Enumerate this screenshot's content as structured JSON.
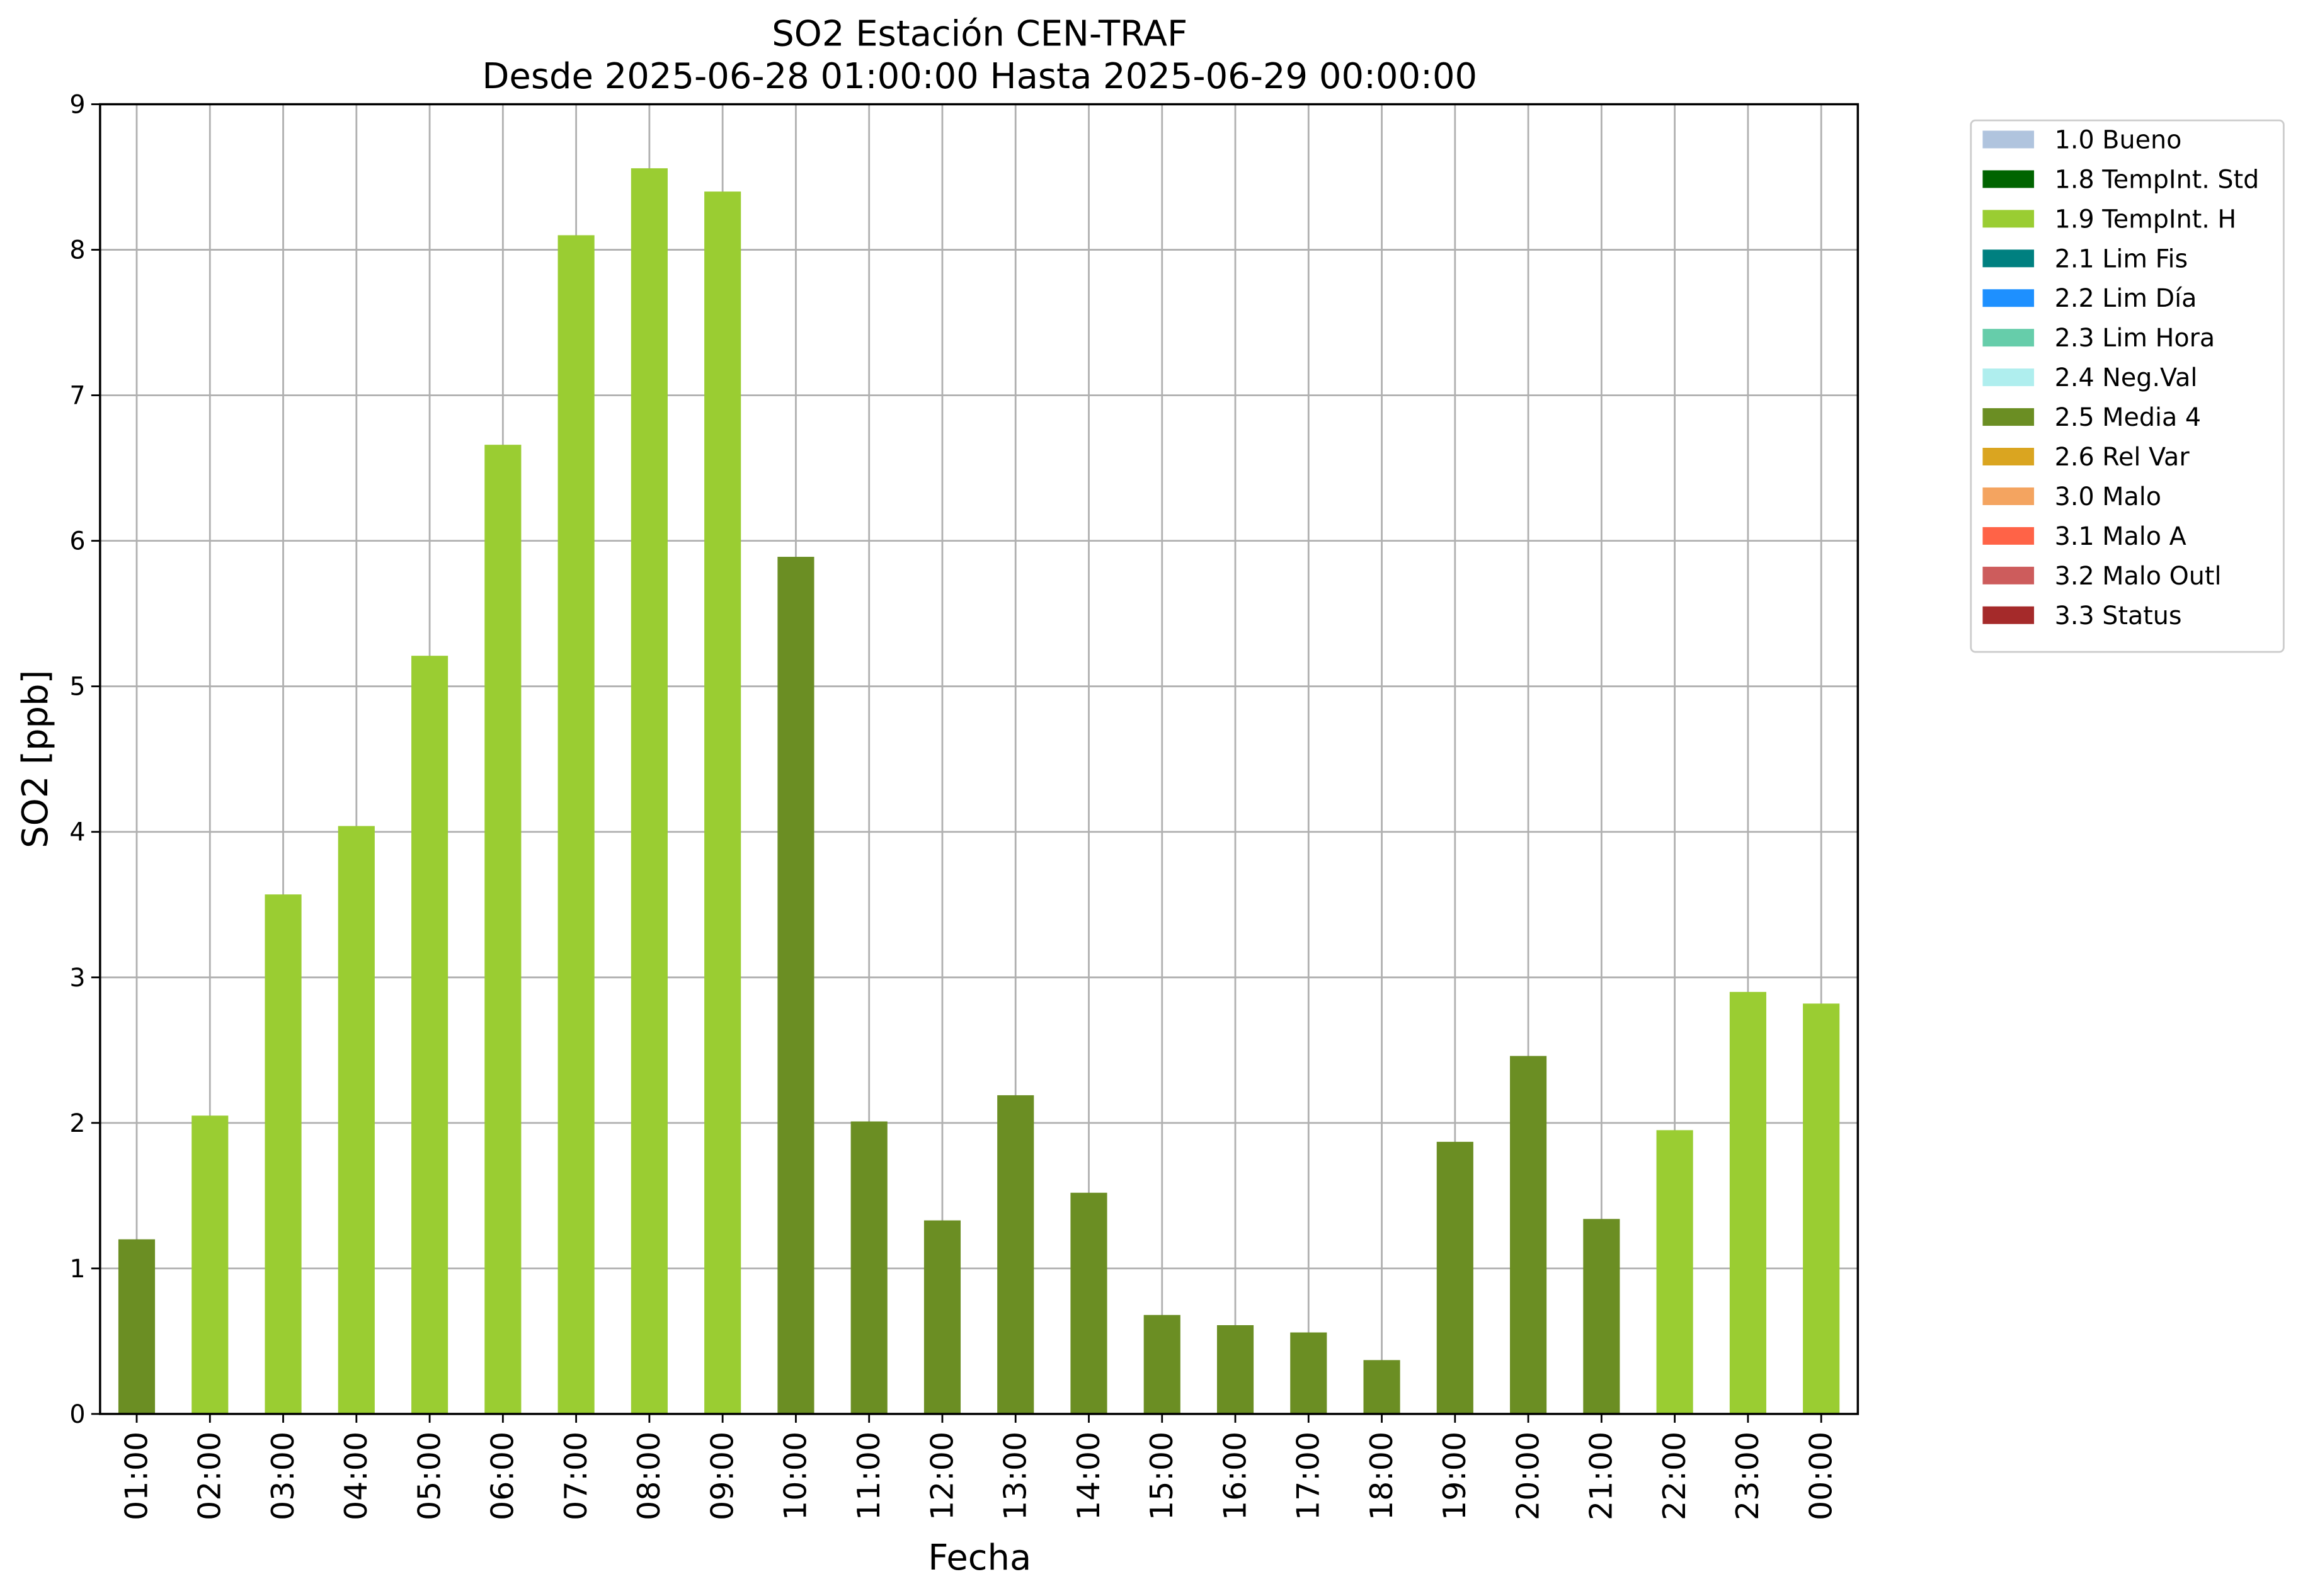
{
  "chart_data": {
    "type": "bar",
    "title": "SO2 Estación CEN-TRAF",
    "subtitle": "Desde 2025-06-28 01:00:00 Hasta 2025-06-29 00:00:00",
    "x_label": "Fecha",
    "y_label": "SO2 [ppb]",
    "categories": [
      "01:00",
      "02:00",
      "03:00",
      "04:00",
      "05:00",
      "06:00",
      "07:00",
      "08:00",
      "09:00",
      "10:00",
      "11:00",
      "12:00",
      "13:00",
      "14:00",
      "15:00",
      "16:00",
      "17:00",
      "18:00",
      "19:00",
      "20:00",
      "21:00",
      "22:00",
      "23:00",
      "00:00"
    ],
    "ylim": [
      0,
      9
    ],
    "yticks": [
      0,
      1,
      2,
      3,
      4,
      5,
      6,
      7,
      8,
      9
    ],
    "grid": true,
    "legend_position": "outside-upper-right",
    "series": [
      {
        "name": "1.0 Bueno",
        "color": "#b0c4de",
        "values": [
          null,
          null,
          null,
          null,
          null,
          null,
          null,
          null,
          null,
          null,
          null,
          null,
          null,
          null,
          null,
          null,
          null,
          null,
          null,
          null,
          null,
          null,
          null,
          null
        ]
      },
      {
        "name": "1.8 TempInt. Std",
        "color": "#006400",
        "values": [
          null,
          null,
          null,
          null,
          null,
          null,
          null,
          null,
          null,
          null,
          null,
          null,
          null,
          null,
          null,
          null,
          null,
          null,
          null,
          null,
          null,
          null,
          null,
          null
        ]
      },
      {
        "name": "1.9 TempInt. H",
        "color": "#9acd32",
        "values": [
          null,
          2.05,
          3.57,
          4.04,
          5.21,
          6.66,
          8.1,
          8.56,
          8.4,
          null,
          null,
          null,
          null,
          null,
          null,
          null,
          null,
          null,
          null,
          null,
          null,
          1.95,
          2.9,
          2.82
        ]
      },
      {
        "name": "2.1 Lim Fis",
        "color": "#008080",
        "values": [
          null,
          null,
          null,
          null,
          null,
          null,
          null,
          null,
          null,
          null,
          null,
          null,
          null,
          null,
          null,
          null,
          null,
          null,
          null,
          null,
          null,
          null,
          null,
          null
        ]
      },
      {
        "name": "2.2 Lim Día",
        "color": "#1e90ff",
        "values": [
          null,
          null,
          null,
          null,
          null,
          null,
          null,
          null,
          null,
          null,
          null,
          null,
          null,
          null,
          null,
          null,
          null,
          null,
          null,
          null,
          null,
          null,
          null,
          null
        ]
      },
      {
        "name": "2.3 Lim Hora",
        "color": "#66cdaa",
        "values": [
          null,
          null,
          null,
          null,
          null,
          null,
          null,
          null,
          null,
          null,
          null,
          null,
          null,
          null,
          null,
          null,
          null,
          null,
          null,
          null,
          null,
          null,
          null,
          null
        ]
      },
      {
        "name": "2.4 Neg.Val",
        "color": "#afeeee",
        "values": [
          null,
          null,
          null,
          null,
          null,
          null,
          null,
          null,
          null,
          null,
          null,
          null,
          null,
          null,
          null,
          null,
          null,
          null,
          null,
          null,
          null,
          null,
          null,
          null
        ]
      },
      {
        "name": "2.5 Media 4",
        "color": "#6b8e23",
        "values": [
          1.2,
          null,
          null,
          null,
          null,
          null,
          null,
          null,
          null,
          5.89,
          2.01,
          1.33,
          2.19,
          1.52,
          0.68,
          0.61,
          0.56,
          0.37,
          1.87,
          2.46,
          1.34,
          null,
          null,
          null
        ]
      },
      {
        "name": "2.6 Rel Var",
        "color": "#daa520",
        "values": [
          null,
          null,
          null,
          null,
          null,
          null,
          null,
          null,
          null,
          null,
          null,
          null,
          null,
          null,
          null,
          null,
          null,
          null,
          null,
          null,
          null,
          null,
          null,
          null
        ]
      },
      {
        "name": "3.0 Malo",
        "color": "#f4a460",
        "values": [
          null,
          null,
          null,
          null,
          null,
          null,
          null,
          null,
          null,
          null,
          null,
          null,
          null,
          null,
          null,
          null,
          null,
          null,
          null,
          null,
          null,
          null,
          null,
          null
        ]
      },
      {
        "name": "3.1 Malo A",
        "color": "#ff6347",
        "values": [
          null,
          null,
          null,
          null,
          null,
          null,
          null,
          null,
          null,
          null,
          null,
          null,
          null,
          null,
          null,
          null,
          null,
          null,
          null,
          null,
          null,
          null,
          null,
          null
        ]
      },
      {
        "name": "3.2 Malo Outl",
        "color": "#cd5c5c",
        "values": [
          null,
          null,
          null,
          null,
          null,
          null,
          null,
          null,
          null,
          null,
          null,
          null,
          null,
          null,
          null,
          null,
          null,
          null,
          null,
          null,
          null,
          null,
          null,
          null
        ]
      },
      {
        "name": "3.3 Status",
        "color": "#a52a2a",
        "values": [
          null,
          null,
          null,
          null,
          null,
          null,
          null,
          null,
          null,
          null,
          null,
          null,
          null,
          null,
          null,
          null,
          null,
          null,
          null,
          null,
          null,
          null,
          null,
          null
        ]
      }
    ]
  }
}
